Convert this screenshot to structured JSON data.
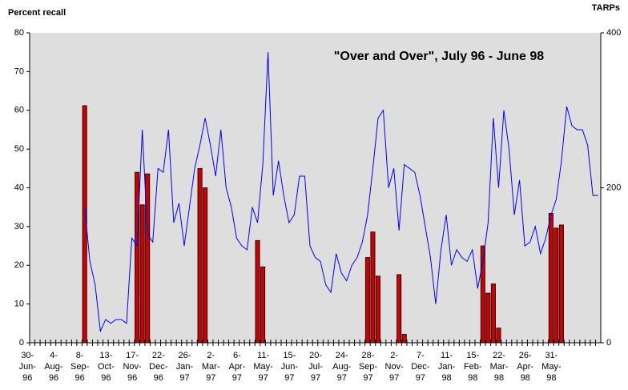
{
  "chart_data": {
    "type": "bar",
    "y_label": "Percent recall",
    "y2_label": "TARPs",
    "annotation": "\"Over and Over\", July 96 - June 98",
    "categories": [
      "30-Jun-96",
      null,
      null,
      null,
      null,
      "4-Aug-96",
      null,
      null,
      null,
      null,
      "8-Sep-96",
      null,
      null,
      null,
      null,
      "13-Oct-96",
      null,
      null,
      null,
      null,
      "17-Nov-96",
      null,
      null,
      null,
      null,
      "22-Dec-96",
      null,
      null,
      null,
      null,
      "26-Jan-97",
      null,
      null,
      null,
      null,
      "2-Mar-97",
      null,
      null,
      null,
      null,
      "6-Apr-97",
      null,
      null,
      null,
      null,
      "11-May-97",
      null,
      null,
      null,
      null,
      "15-Jun-97",
      null,
      null,
      null,
      null,
      "20-Jul-97",
      null,
      null,
      null,
      null,
      "24-Aug-97",
      null,
      null,
      null,
      null,
      "28-Sep-97",
      null,
      null,
      null,
      null,
      "2-Nov-97",
      null,
      null,
      null,
      null,
      "7-Dec-97",
      null,
      null,
      null,
      null,
      "11-Jan-98",
      null,
      null,
      null,
      null,
      "15-Feb-98",
      null,
      null,
      null,
      null,
      "22-Mar-98",
      null,
      null,
      null,
      null,
      "26-Apr-98",
      null,
      null,
      null,
      null,
      "31-May-98",
      null,
      null,
      null,
      null,
      null,
      null,
      null,
      null
    ],
    "series": [
      {
        "type": "bar",
        "axis": "y2",
        "color": "#cc0000",
        "values": [
          null,
          null,
          null,
          null,
          null,
          null,
          null,
          null,
          null,
          null,
          306,
          null,
          null,
          null,
          null,
          null,
          null,
          null,
          null,
          null,
          220,
          178,
          218,
          null,
          null,
          null,
          null,
          null,
          null,
          null,
          null,
          null,
          225,
          200,
          null,
          null,
          null,
          null,
          null,
          null,
          null,
          null,
          null,
          132,
          98,
          null,
          null,
          null,
          null,
          null,
          null,
          null,
          null,
          null,
          null,
          null,
          null,
          null,
          null,
          null,
          null,
          null,
          null,
          null,
          110,
          143,
          86,
          null,
          null,
          null,
          88,
          11,
          null,
          null,
          null,
          null,
          null,
          null,
          null,
          null,
          null,
          null,
          null,
          null,
          null,
          null,
          125,
          64,
          76,
          19,
          null,
          null,
          null,
          null,
          null,
          null,
          null,
          null,
          null,
          167,
          148,
          152,
          null,
          null,
          null,
          null,
          null,
          null,
          null
        ]
      },
      {
        "type": "line",
        "axis": "y",
        "color": "#0000ff",
        "values": [
          null,
          null,
          null,
          null,
          null,
          null,
          null,
          null,
          null,
          null,
          35,
          21,
          15,
          3,
          6,
          5,
          6,
          6,
          5,
          27,
          25,
          55,
          28,
          26,
          45,
          44,
          55,
          31,
          36,
          25,
          35,
          45,
          51,
          58,
          51,
          43,
          55,
          40,
          35,
          27,
          25,
          24,
          35,
          31,
          46,
          75,
          38,
          47,
          38,
          31,
          33,
          43,
          43,
          25,
          22,
          21,
          15,
          13,
          23,
          18,
          16,
          20,
          22,
          26,
          33,
          45,
          58,
          60,
          40,
          45,
          29,
          46,
          45,
          44,
          38,
          30,
          22,
          10,
          24,
          33,
          20,
          24,
          22,
          21,
          24,
          14,
          21,
          31,
          58,
          40,
          60,
          50,
          33,
          42,
          25,
          26,
          30,
          23,
          27,
          33,
          37,
          47,
          61,
          56,
          55,
          55,
          51,
          38,
          38
        ]
      }
    ],
    "ylim": [
      0,
      80
    ],
    "yticks": [
      0,
      10,
      20,
      30,
      40,
      50,
      60,
      70,
      80
    ],
    "y2lim": [
      0,
      400
    ],
    "y2ticks": [
      0,
      200,
      400
    ],
    "background": "#dedede"
  }
}
